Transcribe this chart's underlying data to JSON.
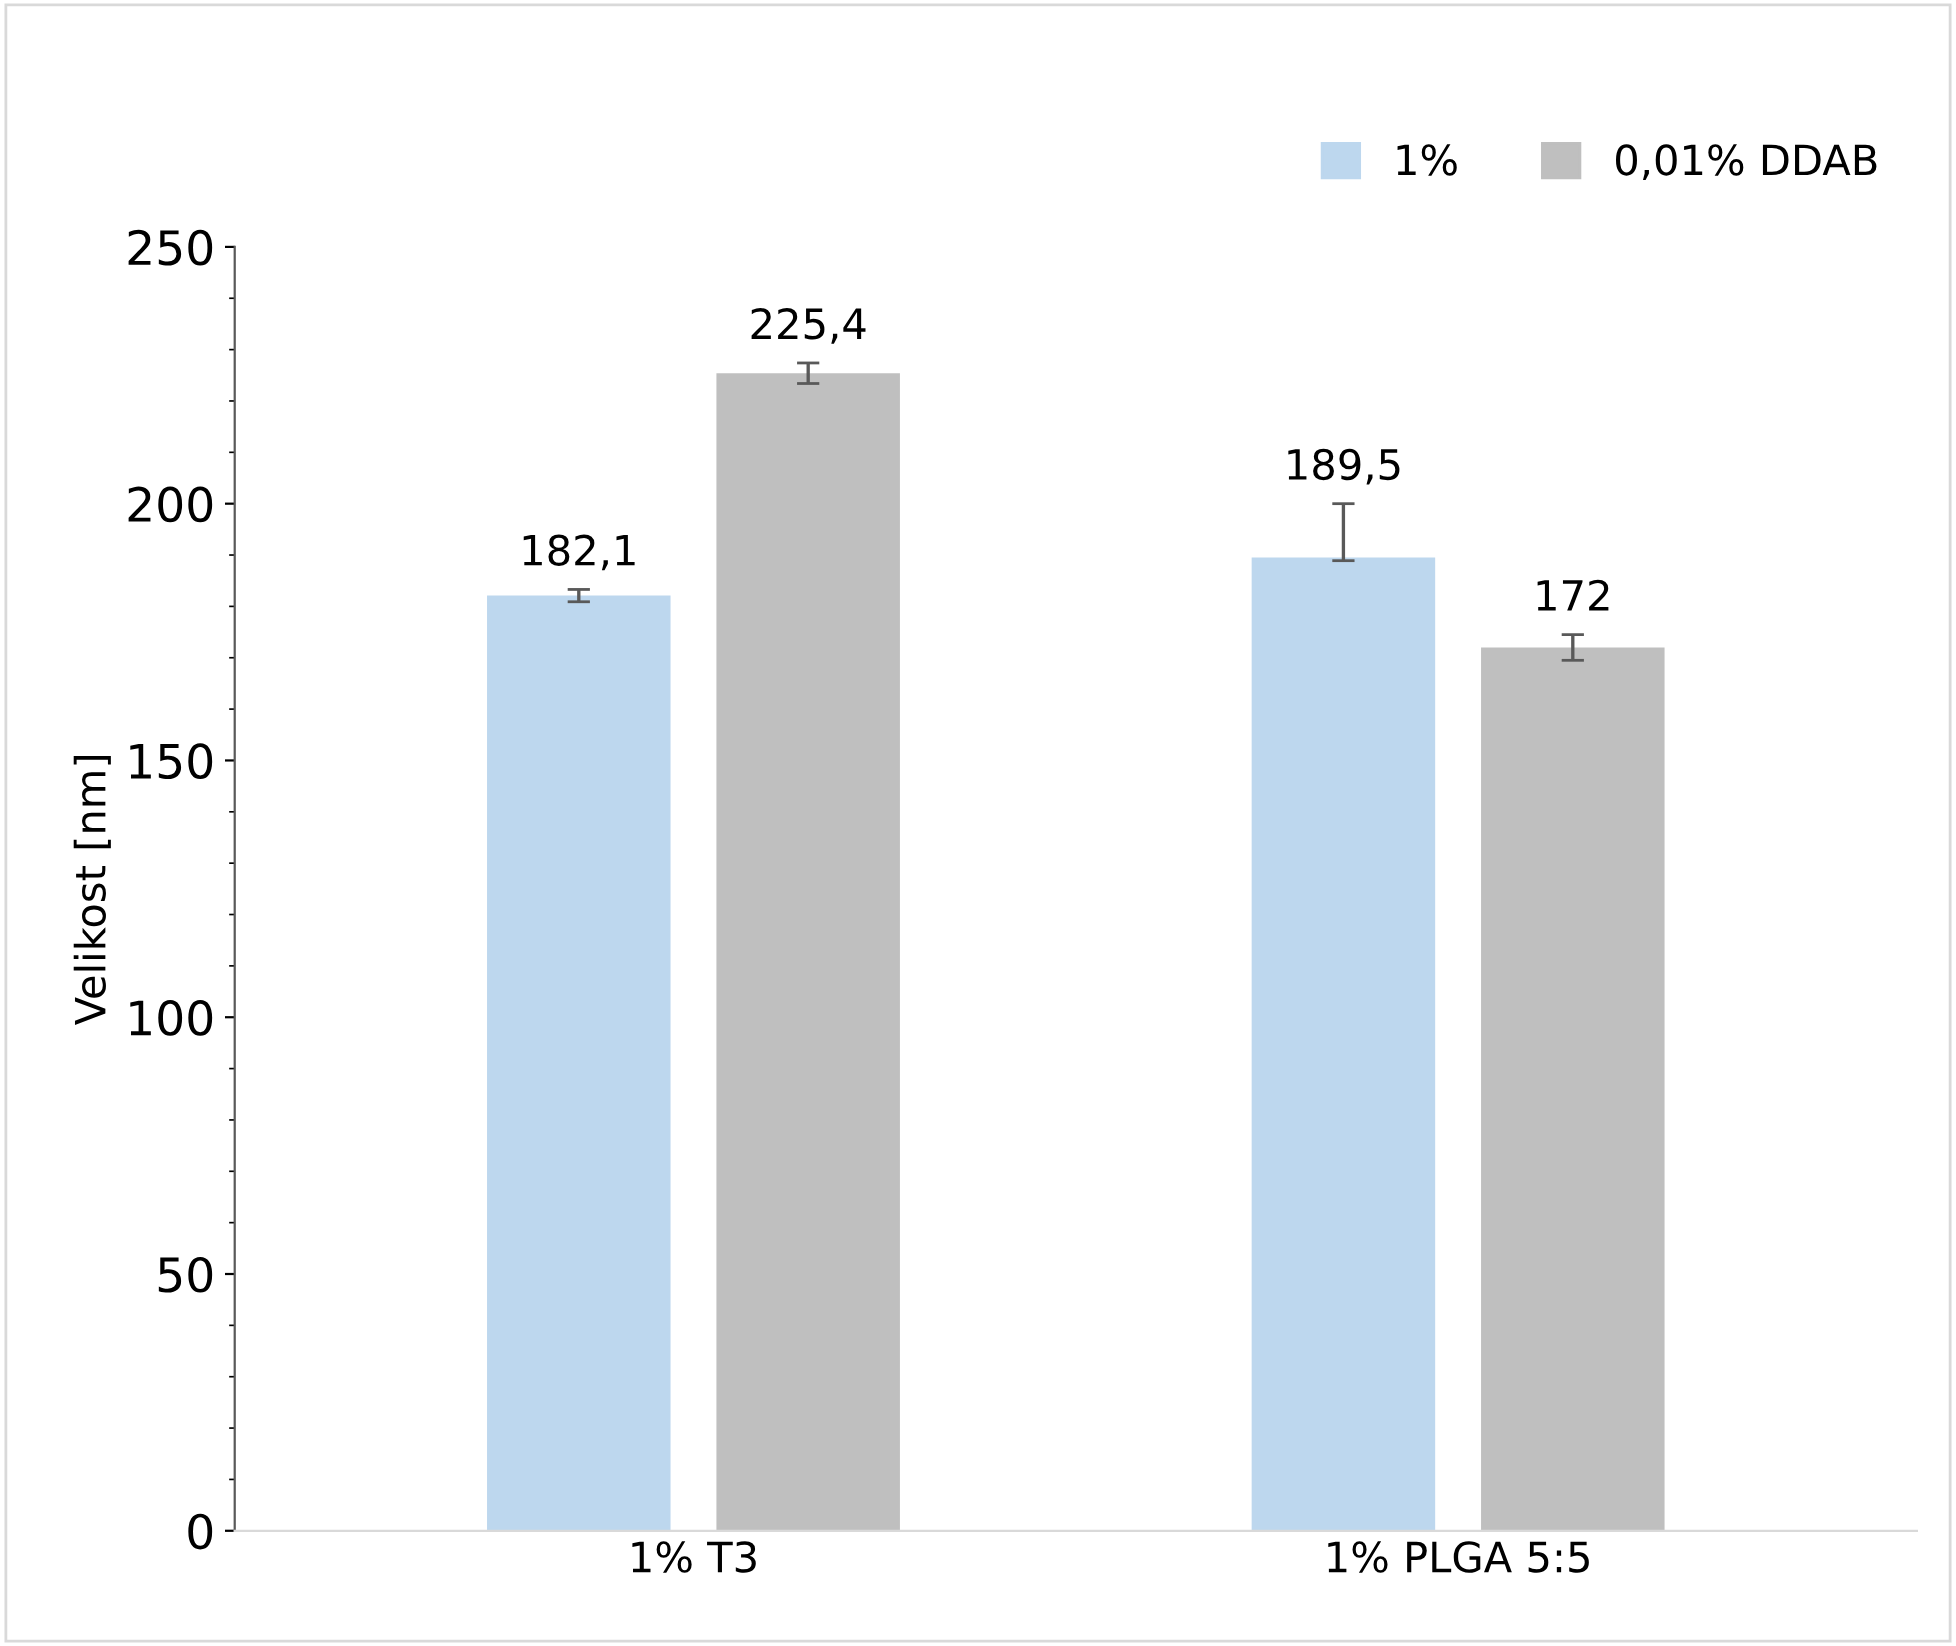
{
  "chart_data": {
    "type": "bar",
    "ylabel": "Velikost [nm]",
    "categories": [
      "1% T3",
      "1% PLGA 5:5"
    ],
    "series": [
      {
        "name": "1%",
        "color": "#bdd7ee",
        "values": [
          182.1,
          189.5
        ],
        "errors": [
          1.2,
          [
            188.9,
            200
          ]
        ],
        "value_labels": [
          "182,1",
          "189,5"
        ]
      },
      {
        "name": "0,01% DDAB",
        "color": "#bfbfbf",
        "values": [
          225.4,
          172
        ],
        "errors": [
          2,
          2.5
        ],
        "value_labels": [
          "225,4",
          "172"
        ]
      }
    ],
    "ylim": [
      0,
      250
    ],
    "yticks": [
      0,
      50,
      100,
      150,
      200,
      250
    ],
    "grid": false,
    "legend": "top right"
  }
}
